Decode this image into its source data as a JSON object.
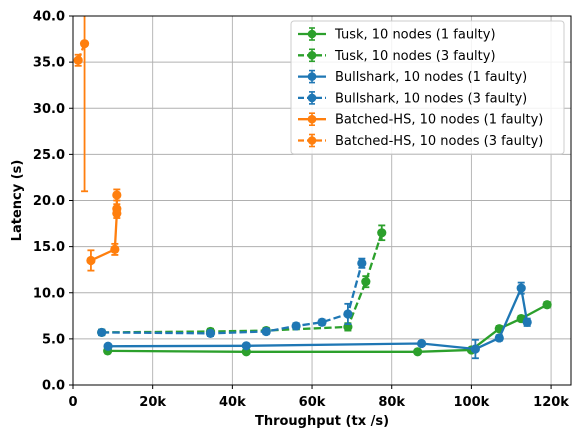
{
  "chart_data": {
    "type": "line",
    "xlabel": "Throughput (tx /s)",
    "ylabel": "Latency (s)",
    "xlim": [
      0,
      125000
    ],
    "ylim": [
      0,
      40
    ],
    "xticks": [
      0,
      20000,
      40000,
      60000,
      80000,
      100000,
      120000
    ],
    "xtick_labels": [
      "0",
      "20k",
      "40k",
      "60k",
      "80k",
      "100k",
      "120k"
    ],
    "yticks": [
      0,
      5,
      10,
      15,
      20,
      25,
      30,
      35,
      40
    ],
    "ytick_labels": [
      "0.0",
      "5.0",
      "10.0",
      "15.0",
      "20.0",
      "25.0",
      "30.0",
      "35.0",
      "40.0"
    ],
    "grid": true,
    "legend_position": "top-right",
    "series": [
      {
        "name": "Tusk, 10 nodes (1 faulty)",
        "color": "#2ca02c",
        "dash": "solid",
        "points": [
          {
            "x": 8700,
            "y": 3.7,
            "err": 0.15
          },
          {
            "x": 43500,
            "y": 3.6,
            "err": 0.15
          },
          {
            "x": 86500,
            "y": 3.6,
            "err": 0.15
          },
          {
            "x": 100000,
            "y": 3.8,
            "err": 0.2
          },
          {
            "x": 107000,
            "y": 6.1,
            "err": 0.3
          },
          {
            "x": 112500,
            "y": 7.2,
            "err": 0.3
          },
          {
            "x": 119000,
            "y": 8.7,
            "err": 0.3
          }
        ]
      },
      {
        "name": "Tusk, 10 nodes (3 faulty)",
        "color": "#2ca02c",
        "dash": "dashed",
        "points": [
          {
            "x": 7200,
            "y": 5.7,
            "err": 0.3
          },
          {
            "x": 34500,
            "y": 5.8,
            "err": 0.3
          },
          {
            "x": 48500,
            "y": 5.9,
            "err": 0.3
          },
          {
            "x": 69000,
            "y": 6.3,
            "err": 0.4
          },
          {
            "x": 73500,
            "y": 11.2,
            "err": 0.6
          },
          {
            "x": 77500,
            "y": 16.5,
            "err": 0.8
          }
        ]
      },
      {
        "name": "Bullshark, 10 nodes (1 faulty)",
        "color": "#1f77b4",
        "dash": "solid",
        "points": [
          {
            "x": 8800,
            "y": 4.2,
            "err": 0.2
          },
          {
            "x": 43500,
            "y": 4.25,
            "err": 0.2
          },
          {
            "x": 87500,
            "y": 4.5,
            "err": 0.2
          },
          {
            "x": 101000,
            "y": 3.9,
            "err": 1.0
          },
          {
            "x": 107000,
            "y": 5.1,
            "err": 0.3
          },
          {
            "x": 112500,
            "y": 10.5,
            "err": 0.6
          },
          {
            "x": 114000,
            "y": 6.8,
            "err": 0.4
          }
        ]
      },
      {
        "name": "Bullshark, 10 nodes (3 faulty)",
        "color": "#1f77b4",
        "dash": "dashed",
        "points": [
          {
            "x": 7200,
            "y": 5.7,
            "err": 0.3
          },
          {
            "x": 34500,
            "y": 5.6,
            "err": 0.3
          },
          {
            "x": 48500,
            "y": 5.8,
            "err": 0.3
          },
          {
            "x": 56000,
            "y": 6.4,
            "err": 0.3
          },
          {
            "x": 62500,
            "y": 6.8,
            "err": 0.3
          },
          {
            "x": 69000,
            "y": 7.7,
            "err": 1.1
          },
          {
            "x": 72500,
            "y": 13.2,
            "err": 0.5
          }
        ]
      },
      {
        "name": "Batched-HS, 10 nodes (1 faulty)",
        "color": "#ff7f0e",
        "dash": "solid",
        "points": [
          {
            "x": 4500,
            "y": 13.5,
            "err": 1.1
          },
          {
            "x": 10500,
            "y": 14.7,
            "err": 0.6
          },
          {
            "x": 11000,
            "y": 18.6,
            "err": 0.5
          },
          {
            "x": 11000,
            "y": 19.1,
            "err": 0.5
          },
          {
            "x": 11000,
            "y": 20.6,
            "err": 0.6
          }
        ]
      },
      {
        "name": "Batched-HS, 10 nodes (3 faulty)",
        "color": "#ff7f0e",
        "dash": "dashed",
        "points": [
          {
            "x": 1300,
            "y": 35.2,
            "err": 0.6
          },
          {
            "x": 2900,
            "y": 37.0,
            "err": 16.0
          }
        ]
      }
    ]
  }
}
